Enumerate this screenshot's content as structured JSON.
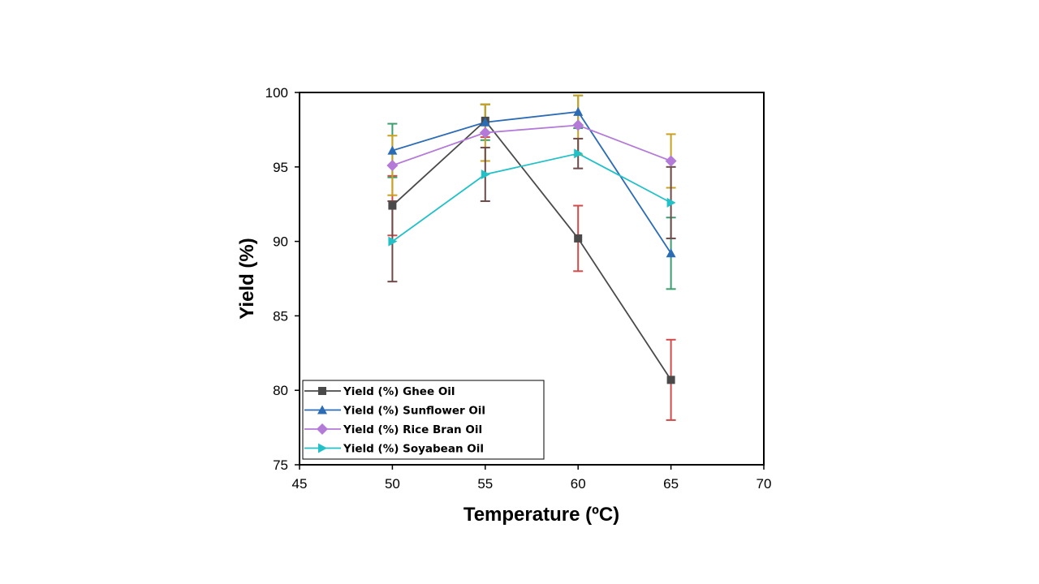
{
  "chart_data": {
    "type": "line",
    "title": "",
    "xlabel": "Temperature (ºC)",
    "ylabel": "Yield (%)",
    "xlim": [
      45,
      70
    ],
    "ylim": [
      75,
      100
    ],
    "xticks": [
      45,
      50,
      55,
      60,
      65,
      70
    ],
    "yticks": [
      75,
      80,
      85,
      90,
      95,
      100
    ],
    "grid": false,
    "legend_position": "bottom-left",
    "x": [
      50,
      55,
      60,
      65
    ],
    "series": [
      {
        "name": "Yield (%) Ghee Oil",
        "marker": "square",
        "color": "#4a4a4a",
        "error_color": "#d24a4a",
        "values": [
          92.4,
          98.1,
          90.2,
          80.7
        ],
        "errors": [
          2.0,
          1.1,
          2.2,
          2.7
        ]
      },
      {
        "name": "Yield (%) Sunflower Oil",
        "marker": "triangle-up",
        "color": "#2b6cb5",
        "error_color": "#3a9e6e",
        "values": [
          96.1,
          98.0,
          98.7,
          89.2
        ],
        "errors": [
          1.8,
          1.2,
          1.1,
          2.4
        ]
      },
      {
        "name": "Yield (%) Rice Bran Oil",
        "marker": "diamond",
        "color": "#b47ad8",
        "error_color": "#c9a020",
        "values": [
          95.1,
          97.3,
          97.8,
          95.4
        ],
        "errors": [
          2.0,
          1.9,
          2.0,
          1.8
        ]
      },
      {
        "name": "Yield (%) Soyabean Oil",
        "marker": "triangle-right",
        "color": "#22c1c8",
        "error_color": "#6e4a4a",
        "values": [
          90.0,
          94.5,
          95.9,
          92.6
        ],
        "errors": [
          2.7,
          1.8,
          1.0,
          2.4
        ]
      }
    ]
  }
}
